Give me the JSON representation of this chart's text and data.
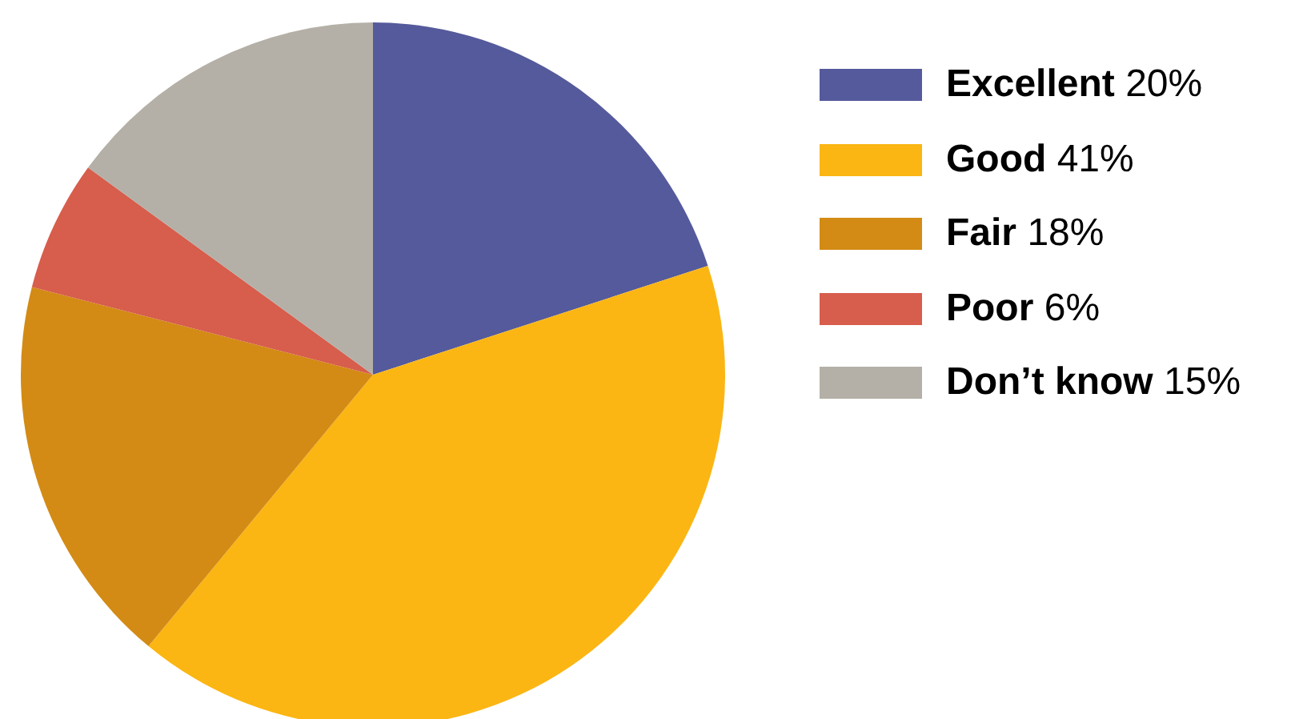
{
  "chart_data": {
    "type": "pie",
    "categories": [
      "Excellent",
      "Good",
      "Fair",
      "Poor",
      "Don’t know"
    ],
    "values": [
      20,
      41,
      18,
      6,
      15
    ],
    "value_labels": [
      "20%",
      "41%",
      "18%",
      "6%",
      "15%"
    ],
    "colors": [
      "#545a9b",
      "#fbb614",
      "#d38b15",
      "#d75d4c",
      "#b4b0a7"
    ],
    "legend": "right"
  }
}
